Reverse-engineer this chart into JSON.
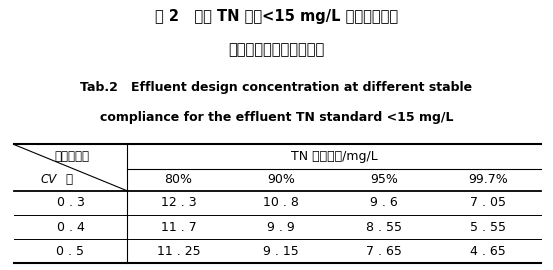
{
  "title_cn_line1": "表 2   出水 TN 标准<15 mg/L 时在不同稳定",
  "title_cn_line2": "达标率时的出水设计浓度",
  "title_en_line1": "Tab.2   Effluent design concentration at different stable",
  "title_en_line2": "compliance for the effluent TN standard <15 mg/L",
  "header_top_left": "稳定达标率",
  "header_bottom_left": "CV 值",
  "header_top_right": "TN 设计出水/mg/L",
  "col_headers": [
    "80%",
    "90%",
    "95%",
    "99.7%"
  ],
  "row_labels": [
    "0 . 3",
    "0 . 4",
    "0 . 5"
  ],
  "data": [
    [
      "12 . 3",
      "10 . 8",
      "9 . 6",
      "7 . 05"
    ],
    [
      "11 . 7",
      "9 . 9",
      "8 . 55",
      "5 . 55"
    ],
    [
      "11 . 25",
      "9 . 15",
      "7 . 65",
      "4 . 65"
    ]
  ],
  "bg_color": "#ffffff",
  "text_color": "#000000"
}
